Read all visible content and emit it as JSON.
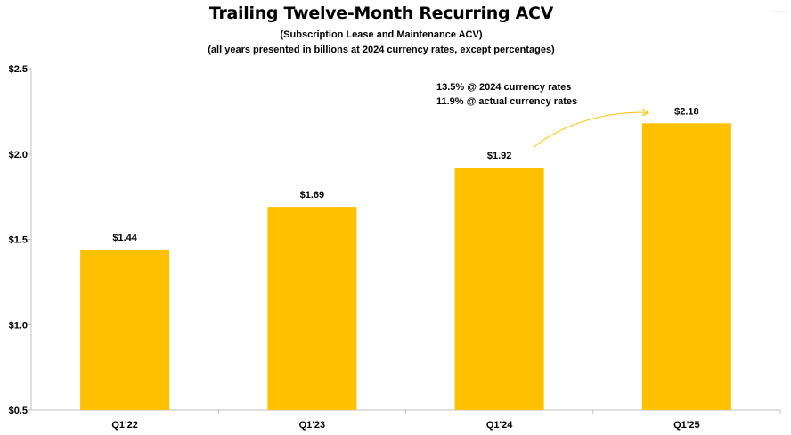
{
  "chart_data": {
    "type": "bar",
    "title": "Trailing Twelve-Month Recurring ACV",
    "subtitle": "(Subscription Lease and Maintenance ACV)",
    "subtitle2": "(all years presented in billions at 2024 currency rates, except percentages)",
    "categories": [
      "Q1'22",
      "Q1'23",
      "Q1'24",
      "Q1'25"
    ],
    "values": [
      1.44,
      1.69,
      1.92,
      2.18
    ],
    "data_labels": [
      "$1.44",
      "$1.69",
      "$1.92",
      "$2.18"
    ],
    "y_ticks": [
      0.5,
      1.0,
      1.5,
      2.0,
      2.5
    ],
    "y_tick_labels": [
      "$0.5",
      "$1.0",
      "$1.5",
      "$2.0",
      "$2.5"
    ],
    "ylim": [
      0.5,
      2.5
    ],
    "xlabel": "",
    "ylabel": "",
    "grid": false,
    "bar_color": "#FFC000",
    "annotations": [
      "13.5% @ 2024 currency rates",
      "11.9% @ actual currency rates"
    ],
    "annotation_arrow": {
      "from": "Q1'24",
      "to": "Q1'25",
      "color": "#FFC000"
    }
  }
}
